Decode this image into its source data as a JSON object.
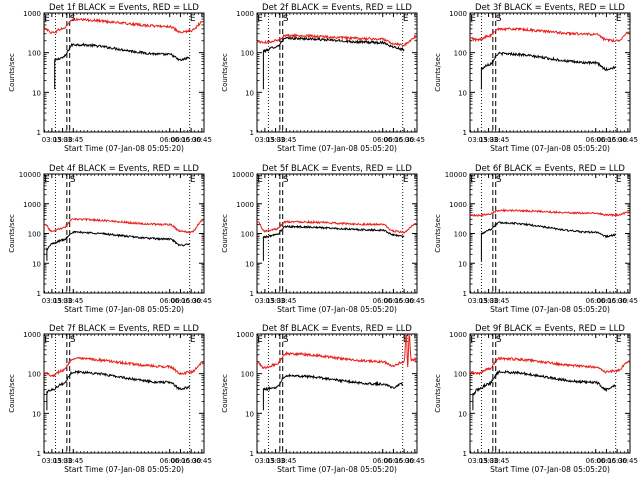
{
  "chart_data": [
    {
      "type": "line",
      "title": "Det 1f BLACK = Events, RED = LLD",
      "xlabel": "Start Time (07-Jan-08 05:05:20)",
      "ylabel": "Counts/sec",
      "yscale": "log",
      "ylim": [
        1,
        1000
      ],
      "ytick_labels": [
        "1",
        "10",
        "100",
        "1000"
      ],
      "xlim": [
        "03:04",
        "06:48"
      ],
      "xtick_labels": [
        "03:15",
        "03:30",
        "03:45",
        "06:00",
        "06:15",
        "06:30",
        "06:45"
      ],
      "markers": [
        {
          "label": "E",
          "x": "03:04"
        },
        {
          "label": "S",
          "x": "03:40"
        },
        {
          "label": "E",
          "x": "06:28"
        }
      ],
      "vlines_dotted": [
        "03:20",
        "06:28"
      ],
      "vlines_dashed": [
        "03:36",
        "03:40"
      ],
      "series": [
        {
          "name": "Events",
          "color": "#000000",
          "x": [
            "03:19",
            "03:30",
            "03:45",
            "06:00",
            "06:15",
            "06:28"
          ],
          "y": [
            65,
            75,
            160,
            90,
            65,
            75
          ]
        },
        {
          "name": "LLD",
          "color": "#e8201a",
          "x": [
            "03:04",
            "03:15",
            "03:30",
            "03:45",
            "06:00",
            "06:15",
            "06:30",
            "06:47"
          ],
          "y": [
            420,
            320,
            400,
            680,
            460,
            320,
            360,
            600
          ]
        }
      ]
    },
    {
      "type": "line",
      "title": "Det 2f BLACK = Events, RED = LLD",
      "xlabel": "Start Time (07-Jan-08 05:05:20)",
      "ylabel": "Counts/sec",
      "yscale": "log",
      "ylim": [
        1,
        1000
      ],
      "ytick_labels": [
        "1",
        "10",
        "100",
        "1000"
      ],
      "xlim": [
        "03:04",
        "06:48"
      ],
      "xtick_labels": [
        "03:15",
        "03:30",
        "03:45",
        "06:00",
        "06:15",
        "06:30",
        "06:45"
      ],
      "markers": [
        {
          "label": "E",
          "x": "03:04"
        },
        {
          "label": "S",
          "x": "03:40"
        },
        {
          "label": "E",
          "x": "06:28"
        }
      ],
      "vlines_dotted": [
        "03:20",
        "06:28"
      ],
      "vlines_dashed": [
        "03:36",
        "03:40"
      ],
      "series": [
        {
          "name": "Events",
          "color": "#000000",
          "x": [
            "03:13",
            "03:30",
            "03:45",
            "06:00",
            "06:15",
            "06:30"
          ],
          "y": [
            110,
            140,
            230,
            180,
            140,
            120
          ]
        },
        {
          "name": "LLD",
          "color": "#e8201a",
          "x": [
            "03:04",
            "03:15",
            "03:30",
            "03:45",
            "06:00",
            "06:15",
            "06:30",
            "06:47"
          ],
          "y": [
            190,
            180,
            200,
            270,
            220,
            170,
            160,
            250
          ]
        }
      ]
    },
    {
      "type": "line",
      "title": "Det 3f BLACK = Events, RED = LLD",
      "xlabel": "Start Time (07-Jan-08 05:05:20)",
      "ylabel": "Counts/sec",
      "yscale": "log",
      "ylim": [
        1,
        1000
      ],
      "ytick_labels": [
        "1",
        "10",
        "100",
        "1000"
      ],
      "xlim": [
        "03:04",
        "06:48"
      ],
      "xtick_labels": [
        "03:15",
        "03:30",
        "03:45",
        "06:00",
        "06:15",
        "06:30",
        "06:45"
      ],
      "markers": [
        {
          "label": "E",
          "x": "03:04"
        },
        {
          "label": "S",
          "x": "03:40"
        },
        {
          "label": "E",
          "x": "06:28"
        }
      ],
      "vlines_dotted": [
        "03:20",
        "06:28"
      ],
      "vlines_dashed": [
        "03:36",
        "03:40"
      ],
      "series": [
        {
          "name": "Events",
          "color": "#000000",
          "x": [
            "03:20",
            "03:30",
            "03:45",
            "06:00",
            "06:15",
            "06:28"
          ],
          "y": [
            40,
            50,
            95,
            55,
            38,
            42
          ]
        },
        {
          "name": "LLD",
          "color": "#e8201a",
          "x": [
            "03:04",
            "03:15",
            "03:30",
            "03:45",
            "06:00",
            "06:15",
            "06:30",
            "06:47"
          ],
          "y": [
            230,
            210,
            260,
            400,
            290,
            210,
            200,
            330
          ]
        }
      ]
    },
    {
      "type": "line",
      "title": "Det 4f BLACK = Events, RED = LLD",
      "xlabel": "Start Time (07-Jan-08 05:05:20)",
      "ylabel": "Counts/sec",
      "yscale": "log",
      "ylim": [
        1,
        10000
      ],
      "ytick_labels": [
        "1",
        "10",
        "100",
        "1000",
        "10000"
      ],
      "xlim": [
        "03:04",
        "06:48"
      ],
      "xtick_labels": [
        "03:15",
        "03:30",
        "03:45",
        "06:00",
        "06:15",
        "06:30",
        "06:45"
      ],
      "markers": [
        {
          "label": "E",
          "x": "03:04"
        },
        {
          "label": "S",
          "x": "03:40"
        },
        {
          "label": "E",
          "x": "06:28"
        }
      ],
      "vlines_dotted": [
        "03:20",
        "06:28"
      ],
      "vlines_dashed": [
        "03:36",
        "03:40"
      ],
      "series": [
        {
          "name": "Events",
          "color": "#000000",
          "x": [
            "03:08",
            "03:15",
            "03:30",
            "03:45",
            "06:00",
            "06:15",
            "06:28"
          ],
          "y": [
            30,
            45,
            60,
            110,
            65,
            40,
            45
          ]
        },
        {
          "name": "LLD",
          "color": "#e8201a",
          "x": [
            "03:04",
            "03:15",
            "03:30",
            "03:45",
            "06:00",
            "06:15",
            "06:30",
            "06:47"
          ],
          "y": [
            220,
            120,
            150,
            300,
            200,
            120,
            110,
            280
          ]
        }
      ]
    },
    {
      "type": "line",
      "title": "Det 5f BLACK = Events, RED = LLD",
      "xlabel": "Start Time (07-Jan-08 05:05:20)",
      "ylabel": "Counts/sec",
      "yscale": "log",
      "ylim": [
        1,
        10000
      ],
      "ytick_labels": [
        "1",
        "10",
        "100",
        "1000",
        "10000"
      ],
      "xlim": [
        "03:04",
        "06:48"
      ],
      "xtick_labels": [
        "03:15",
        "03:30",
        "03:45",
        "06:00",
        "06:15",
        "06:30",
        "06:45"
      ],
      "markers": [
        {
          "label": "E",
          "x": "03:04"
        },
        {
          "label": "S",
          "x": "03:40"
        },
        {
          "label": "E",
          "x": "06:28"
        }
      ],
      "vlines_dotted": [
        "03:20",
        "06:28"
      ],
      "vlines_dashed": [
        "03:36",
        "03:40"
      ],
      "series": [
        {
          "name": "Events",
          "color": "#000000",
          "x": [
            "03:13",
            "03:30",
            "03:45",
            "06:00",
            "06:15",
            "06:30"
          ],
          "y": [
            75,
            90,
            170,
            130,
            90,
            80
          ]
        },
        {
          "name": "LLD",
          "color": "#e8201a",
          "x": [
            "03:04",
            "03:15",
            "03:30",
            "03:45",
            "06:00",
            "06:15",
            "06:30",
            "06:47"
          ],
          "y": [
            260,
            120,
            140,
            250,
            200,
            120,
            110,
            220
          ]
        }
      ]
    },
    {
      "type": "line",
      "title": "Det 6f BLACK = Events, RED = LLD",
      "xlabel": "Start Time (07-Jan-08 05:05:20)",
      "ylabel": "Counts/sec",
      "yscale": "log",
      "ylim": [
        1,
        10000
      ],
      "ytick_labels": [
        "1",
        "10",
        "100",
        "1000",
        "10000"
      ],
      "xlim": [
        "03:04",
        "06:48"
      ],
      "xtick_labels": [
        "03:15",
        "03:30",
        "03:45",
        "06:00",
        "06:15",
        "06:30",
        "06:45"
      ],
      "markers": [
        {
          "label": "E",
          "x": "03:04"
        },
        {
          "label": "S",
          "x": "03:40"
        },
        {
          "label": "E",
          "x": "06:28"
        }
      ],
      "vlines_dotted": [
        "03:20",
        "06:28"
      ],
      "vlines_dashed": [
        "03:36",
        "03:40"
      ],
      "series": [
        {
          "name": "Events",
          "color": "#000000",
          "x": [
            "03:20",
            "03:30",
            "03:45",
            "06:00",
            "06:15",
            "06:28"
          ],
          "y": [
            100,
            130,
            230,
            110,
            80,
            90
          ]
        },
        {
          "name": "LLD",
          "color": "#e8201a",
          "x": [
            "03:04",
            "03:15",
            "03:30",
            "03:45",
            "06:00",
            "06:15",
            "06:30",
            "06:47"
          ],
          "y": [
            400,
            400,
            450,
            600,
            480,
            420,
            420,
            520
          ]
        }
      ]
    },
    {
      "type": "line",
      "title": "Det 7f BLACK = Events, RED = LLD",
      "xlabel": "Start Time (07-Jan-08 05:05:20)",
      "ylabel": "Counts/sec",
      "yscale": "log",
      "ylim": [
        1,
        1000
      ],
      "ytick_labels": [
        "1",
        "10",
        "100",
        "1000"
      ],
      "xlim": [
        "03:04",
        "06:48"
      ],
      "xtick_labels": [
        "03:15",
        "03:30",
        "03:45",
        "06:00",
        "06:15",
        "06:30",
        "06:45"
      ],
      "markers": [
        {
          "label": "E",
          "x": "03:04"
        },
        {
          "label": "S",
          "x": "03:40"
        },
        {
          "label": "E",
          "x": "06:28"
        }
      ],
      "vlines_dotted": [
        "03:20",
        "06:28"
      ],
      "vlines_dashed": [
        "03:36",
        "03:40"
      ],
      "series": [
        {
          "name": "Events",
          "color": "#000000",
          "x": [
            "03:08",
            "03:15",
            "03:30",
            "03:45",
            "06:00",
            "06:15",
            "06:28"
          ],
          "y": [
            35,
            40,
            55,
            110,
            60,
            42,
            45
          ]
        },
        {
          "name": "LLD",
          "color": "#e8201a",
          "x": [
            "03:04",
            "03:15",
            "03:30",
            "03:45",
            "06:00",
            "06:15",
            "06:30",
            "06:47"
          ],
          "y": [
            110,
            90,
            120,
            240,
            150,
            100,
            110,
            190
          ]
        }
      ]
    },
    {
      "type": "line",
      "title": "Det 8f BLACK = Events, RED = LLD",
      "xlabel": "Start Time (07-Jan-08 05:05:20)",
      "ylabel": "Counts/sec",
      "yscale": "log",
      "ylim": [
        1,
        1000
      ],
      "ytick_labels": [
        "1",
        "10",
        "100",
        "1000"
      ],
      "xlim": [
        "03:04",
        "06:48"
      ],
      "xtick_labels": [
        "03:15",
        "03:30",
        "03:45",
        "06:00",
        "06:15",
        "06:30",
        "06:45"
      ],
      "markers": [
        {
          "label": "E",
          "x": "03:04"
        },
        {
          "label": "S",
          "x": "03:40"
        },
        {
          "label": "E",
          "x": "06:28"
        }
      ],
      "vlines_dotted": [
        "03:20",
        "06:28"
      ],
      "vlines_dashed": [
        "03:36",
        "03:40"
      ],
      "series": [
        {
          "name": "Events",
          "color": "#000000",
          "x": [
            "03:13",
            "03:30",
            "03:45",
            "06:00",
            "06:15",
            "06:28"
          ],
          "y": [
            40,
            45,
            90,
            55,
            45,
            55
          ]
        },
        {
          "name": "LLD",
          "color": "#e8201a",
          "x": [
            "03:04",
            "03:15",
            "03:30",
            "03:45",
            "06:00",
            "06:15",
            "06:30",
            "06:33",
            "06:35",
            "06:37",
            "06:40",
            "06:47"
          ],
          "y": [
            190,
            140,
            170,
            320,
            200,
            160,
            200,
            1000,
            150,
            1000,
            220,
            230
          ]
        }
      ]
    },
    {
      "type": "line",
      "title": "Det 9f BLACK = Events, RED = LLD",
      "xlabel": "Start Time (07-Jan-08 05:05:20)",
      "ylabel": "Counts/sec",
      "yscale": "log",
      "ylim": [
        1,
        1000
      ],
      "ytick_labels": [
        "1",
        "10",
        "100",
        "1000"
      ],
      "xlim": [
        "03:04",
        "06:48"
      ],
      "xtick_labels": [
        "03:15",
        "03:30",
        "03:45",
        "06:00",
        "06:15",
        "06:30",
        "06:45"
      ],
      "markers": [
        {
          "label": "E",
          "x": "03:04"
        },
        {
          "label": "S",
          "x": "03:40"
        },
        {
          "label": "E",
          "x": "06:28"
        }
      ],
      "vlines_dotted": [
        "03:20",
        "06:28"
      ],
      "vlines_dashed": [
        "03:36",
        "03:40"
      ],
      "series": [
        {
          "name": "Events",
          "color": "#000000",
          "x": [
            "03:08",
            "03:15",
            "03:30",
            "03:45",
            "06:00",
            "06:15",
            "06:28"
          ],
          "y": [
            30,
            40,
            55,
            110,
            60,
            40,
            50
          ]
        },
        {
          "name": "LLD",
          "color": "#e8201a",
          "x": [
            "03:04",
            "03:15",
            "03:30",
            "03:45",
            "06:00",
            "06:15",
            "06:30",
            "06:47"
          ],
          "y": [
            110,
            100,
            130,
            240,
            150,
            110,
            120,
            200
          ]
        }
      ]
    }
  ]
}
